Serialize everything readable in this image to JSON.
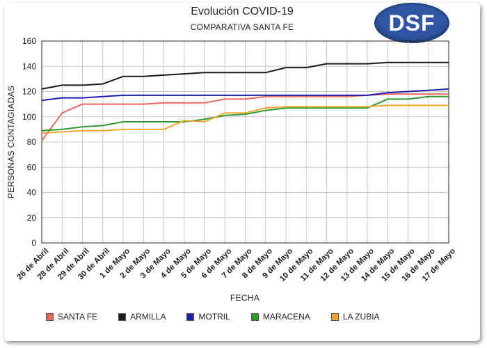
{
  "header": {
    "title": "Evolución COVID-19",
    "subtitle": "COMPARATIVA SANTA FE",
    "logo_text": "DSF"
  },
  "chart_data": {
    "type": "line",
    "title": "Evolución COVID-19",
    "subtitle": "COMPARATIVA SANTA FE",
    "xlabel": "FECHA",
    "ylabel": "PERSONAS CONTAGIADAS",
    "ylim": [
      0,
      160
    ],
    "yticks": [
      0,
      20,
      40,
      60,
      80,
      100,
      120,
      140,
      160
    ],
    "grid": true,
    "legend_position": "bottom",
    "categories": [
      "26 de Abril",
      "28 de Abril",
      "29 de Abril",
      "30 de Abril",
      "1 de Mayo",
      "2 de Mayo",
      "3 de Mayo",
      "4 de Mayo",
      "5 de Mayo",
      "6 de Mayo",
      "7 de Mayo",
      "8 de Mayo",
      "9 de Mayo",
      "10 de Mayo",
      "11 de Mayo",
      "12 de Mayo",
      "13 de Mayo",
      "14 de Mayo",
      "15 de Mayo",
      "16 de Mayo",
      "17 de Mayo"
    ],
    "series": [
      {
        "name": "SANTA FE",
        "color": "#e8695f",
        "values": [
          81,
          103,
          110,
          110,
          110,
          110,
          111,
          111,
          111,
          114,
          114,
          116,
          116,
          116,
          116,
          116,
          117,
          118,
          118,
          118,
          118
        ]
      },
      {
        "name": "ARMILLA",
        "color": "#1a1a1a",
        "values": [
          122,
          125,
          125,
          126,
          132,
          132,
          133,
          134,
          135,
          135,
          135,
          135,
          139,
          139,
          142,
          142,
          142,
          143,
          143,
          143,
          143
        ]
      },
      {
        "name": "MOTRIL",
        "color": "#1f1fb4",
        "values": [
          113,
          115,
          115,
          116,
          117,
          117,
          117,
          117,
          117,
          117,
          117,
          117,
          117,
          117,
          117,
          117,
          117,
          119,
          120,
          121,
          122
        ]
      },
      {
        "name": "MARACENA",
        "color": "#2e9a2e",
        "values": [
          89,
          90,
          92,
          93,
          96,
          96,
          96,
          96,
          98,
          101,
          102,
          105,
          107,
          107,
          107,
          107,
          107,
          114,
          114,
          116,
          116
        ]
      },
      {
        "name": "LA ZUBIA",
        "color": "#f0a830",
        "values": [
          87,
          88,
          89,
          89,
          90,
          90,
          90,
          97,
          96,
          103,
          103,
          107,
          108,
          108,
          108,
          108,
          108,
          109,
          109,
          109,
          109
        ]
      }
    ]
  }
}
